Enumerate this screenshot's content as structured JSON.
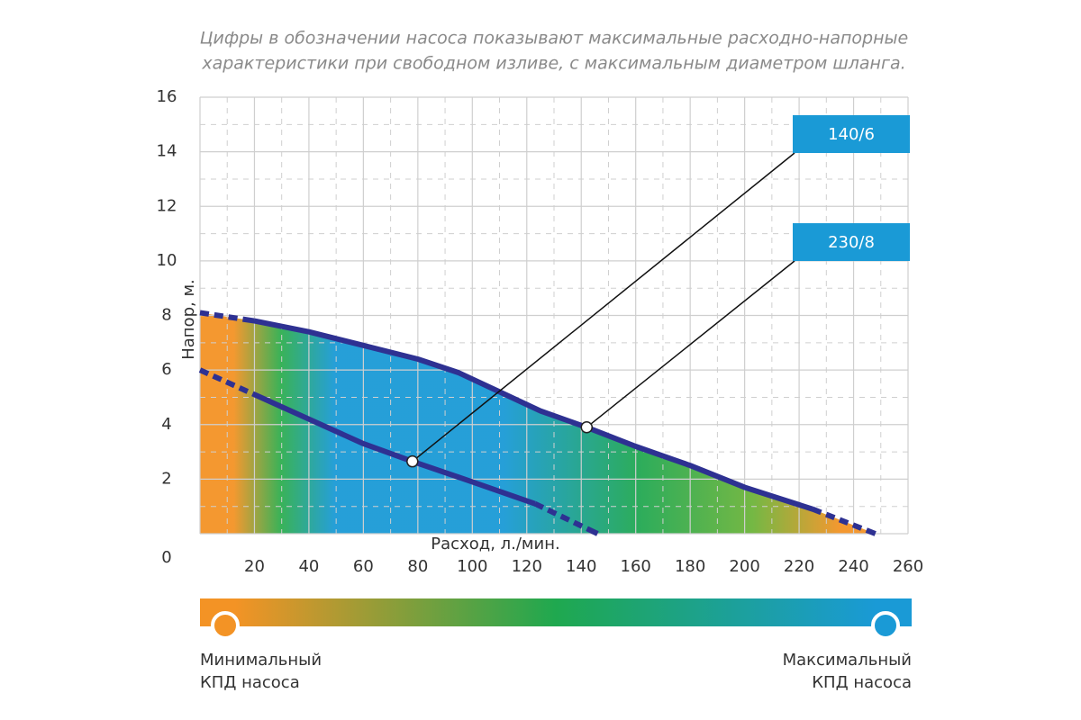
{
  "chart_data": {
    "type": "line",
    "title": [
      "Цифры в обозначении насоса показывают максимальные расходно-напорные",
      "характеристики при свободном изливе, с максимальным диаметром шланга."
    ],
    "xlabel": "Расход, л./мин.",
    "ylabel": "Напор, м.",
    "xlim": [
      0,
      260
    ],
    "ylim": [
      0,
      16
    ],
    "xticks": [
      20,
      40,
      60,
      80,
      100,
      120,
      140,
      160,
      180,
      200,
      220,
      240,
      260
    ],
    "yticks": [
      0,
      2,
      4,
      6,
      8,
      10,
      12,
      14,
      16
    ],
    "grid": true,
    "series": [
      {
        "name": "140/6",
        "color": "#2e3192",
        "x": [
          0,
          20,
          40,
          60,
          78,
          100,
          123,
          146
        ],
        "values": [
          6.0,
          5.1,
          4.2,
          3.3,
          2.65,
          1.9,
          1.1,
          0
        ],
        "label_point": {
          "x": 78,
          "y": 2.65
        }
      },
      {
        "name": "230/8",
        "color": "#2e3192",
        "x": [
          0,
          20,
          40,
          60,
          80,
          95,
          110,
          125,
          142,
          160,
          180,
          200,
          225,
          248
        ],
        "values": [
          8.1,
          7.8,
          7.4,
          6.9,
          6.4,
          5.9,
          5.2,
          4.5,
          3.9,
          3.2,
          2.5,
          1.7,
          0.9,
          0
        ],
        "label_point": {
          "x": 142,
          "y": 3.9
        }
      }
    ],
    "colorbar": {
      "min_label": [
        "Минимальный",
        "КПД насоса"
      ],
      "max_label": [
        "Максимальный",
        "КПД насоса"
      ],
      "min_color": "#f39325",
      "mid_color": "#1fa84f",
      "max_color": "#1a9ad6"
    }
  }
}
